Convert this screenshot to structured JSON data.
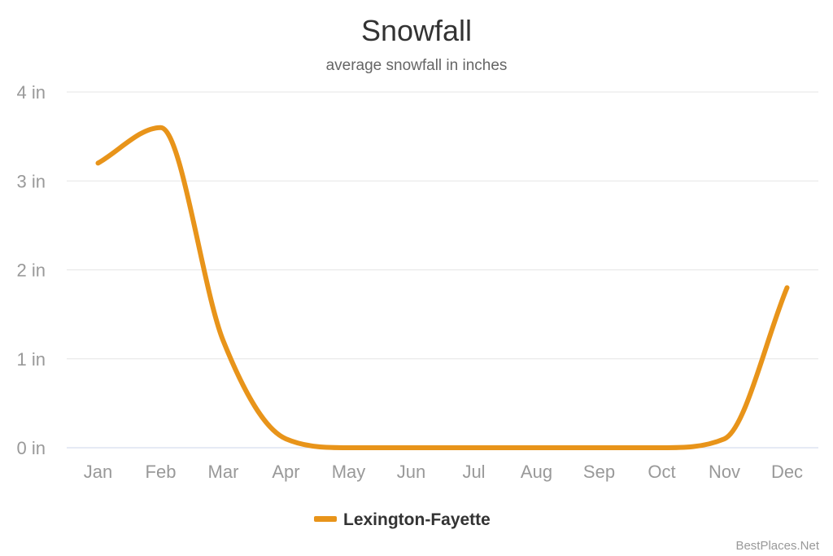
{
  "chart_data": {
    "type": "line",
    "title": "Snowfall",
    "subtitle": "average snowfall in inches",
    "categories": [
      "Jan",
      "Feb",
      "Mar",
      "Apr",
      "May",
      "Jun",
      "Jul",
      "Aug",
      "Sep",
      "Oct",
      "Nov",
      "Dec"
    ],
    "series": [
      {
        "name": "Lexington-Fayette",
        "values": [
          3.2,
          3.6,
          1.2,
          0.1,
          0.0,
          0.0,
          0.0,
          0.0,
          0.0,
          0.0,
          0.1,
          1.8
        ],
        "color": "#e8941a"
      }
    ],
    "y_ticks": [
      "0 in",
      "1 in",
      "2 in",
      "3 in",
      "4 in"
    ],
    "ylim": [
      0,
      4
    ],
    "grid": true,
    "legend": "bottom-center"
  },
  "credit": "BestPlaces.Net"
}
